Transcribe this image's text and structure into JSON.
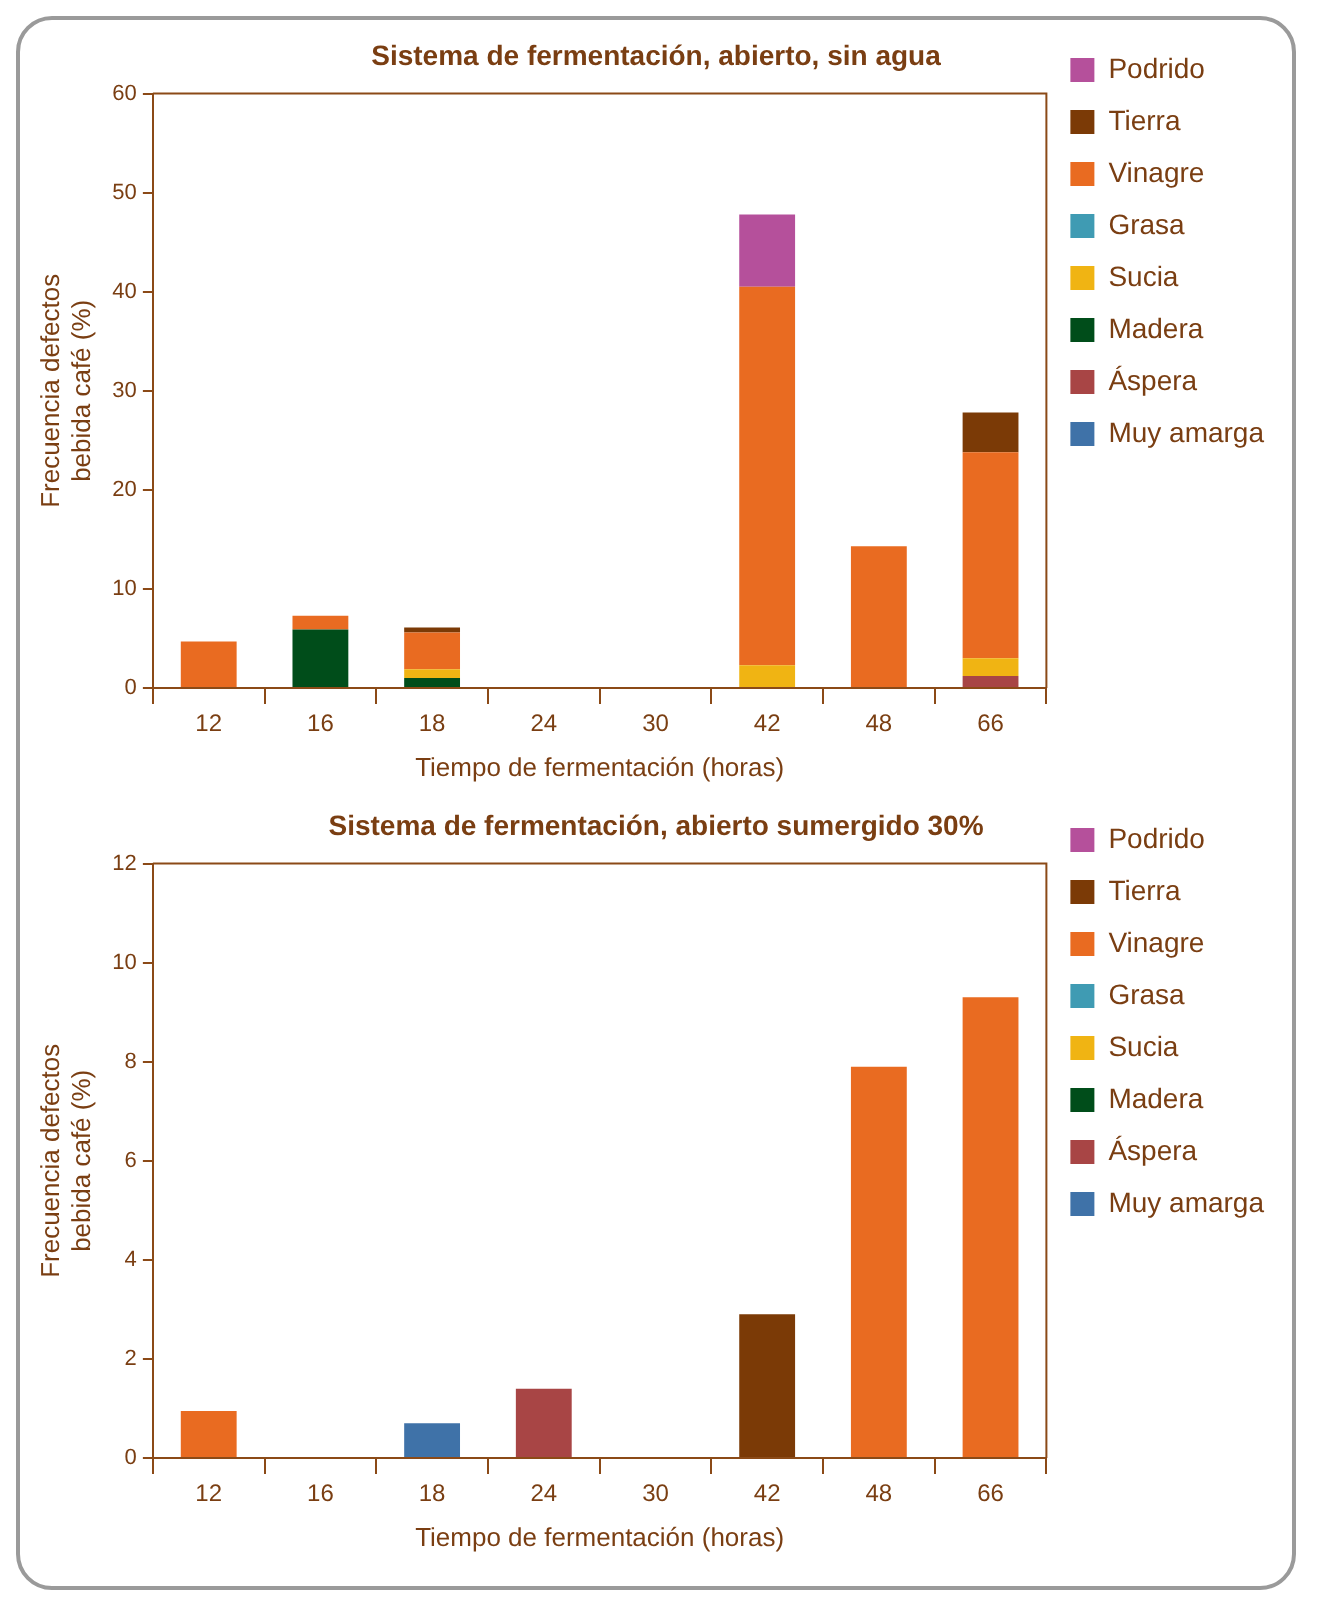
{
  "chart_data": [
    {
      "type": "bar",
      "title": "Sistema de fermentación, abierto, sin agua",
      "xlabel": "Tiempo de fermentación (horas)",
      "ylabel": "Frecuencia defectos bebida café (%)",
      "categories": [
        "12",
        "16",
        "18",
        "24",
        "30",
        "42",
        "48",
        "66"
      ],
      "stacked": true,
      "ylim": [
        0,
        60
      ],
      "yticks": [
        0,
        10,
        20,
        30,
        40,
        50,
        60
      ],
      "grid": false,
      "legend": "right",
      "series": [
        {
          "name": "Muy amarga",
          "color": "#3f72a8",
          "values": [
            null,
            null,
            null,
            null,
            null,
            null,
            null,
            null
          ]
        },
        {
          "name": "Áspera",
          "color": "#a84545",
          "values": [
            null,
            null,
            null,
            null,
            null,
            null,
            null,
            1.2
          ]
        },
        {
          "name": "Madera",
          "color": "#004d1a",
          "values": [
            null,
            5.9,
            1.0,
            null,
            null,
            null,
            null,
            null
          ]
        },
        {
          "name": "Sucia",
          "color": "#f0b413",
          "values": [
            null,
            null,
            0.9,
            null,
            null,
            2.3,
            null,
            1.8
          ]
        },
        {
          "name": "Grasa",
          "color": "#3f9bb3",
          "values": [
            null,
            null,
            null,
            null,
            null,
            null,
            null,
            null
          ]
        },
        {
          "name": "Vinagre",
          "color": "#e96b21",
          "values": [
            4.7,
            1.4,
            3.7,
            null,
            null,
            38.2,
            14.3,
            20.8
          ]
        },
        {
          "name": "Tierra",
          "color": "#7b3a06",
          "values": [
            null,
            null,
            0.5,
            null,
            null,
            null,
            null,
            4.0
          ]
        },
        {
          "name": "Podrido",
          "color": "#b5509b",
          "values": [
            null,
            null,
            null,
            null,
            null,
            7.3,
            null,
            null
          ]
        }
      ]
    },
    {
      "type": "bar",
      "title": "Sistema de fermentación, abierto sumergido 30%",
      "xlabel": "Tiempo de fermentación (horas)",
      "ylabel": "Frecuencia defectos bebida café (%)",
      "categories": [
        "12",
        "16",
        "18",
        "24",
        "30",
        "42",
        "48",
        "66"
      ],
      "stacked": true,
      "ylim": [
        0,
        12
      ],
      "yticks": [
        0,
        2,
        4,
        6,
        8,
        10,
        12
      ],
      "grid": false,
      "legend": "right",
      "series": [
        {
          "name": "Muy amarga",
          "color": "#3f72a8",
          "values": [
            null,
            null,
            0.7,
            null,
            null,
            null,
            null,
            null
          ]
        },
        {
          "name": "Áspera",
          "color": "#a84545",
          "values": [
            null,
            null,
            null,
            1.4,
            null,
            null,
            null,
            null
          ]
        },
        {
          "name": "Madera",
          "color": "#004d1a",
          "values": [
            null,
            null,
            null,
            null,
            null,
            null,
            null,
            null
          ]
        },
        {
          "name": "Sucia",
          "color": "#f0b413",
          "values": [
            null,
            null,
            null,
            null,
            null,
            null,
            null,
            null
          ]
        },
        {
          "name": "Grasa",
          "color": "#3f9bb3",
          "values": [
            null,
            null,
            null,
            null,
            null,
            null,
            null,
            null
          ]
        },
        {
          "name": "Vinagre",
          "color": "#e96b21",
          "values": [
            0.95,
            null,
            null,
            null,
            null,
            null,
            7.9,
            9.3
          ]
        },
        {
          "name": "Tierra",
          "color": "#7b3a06",
          "values": [
            null,
            null,
            null,
            null,
            null,
            2.9,
            null,
            null
          ]
        },
        {
          "name": "Podrido",
          "color": "#b5509b",
          "values": [
            null,
            null,
            null,
            null,
            null,
            null,
            null,
            null
          ]
        }
      ]
    }
  ]
}
